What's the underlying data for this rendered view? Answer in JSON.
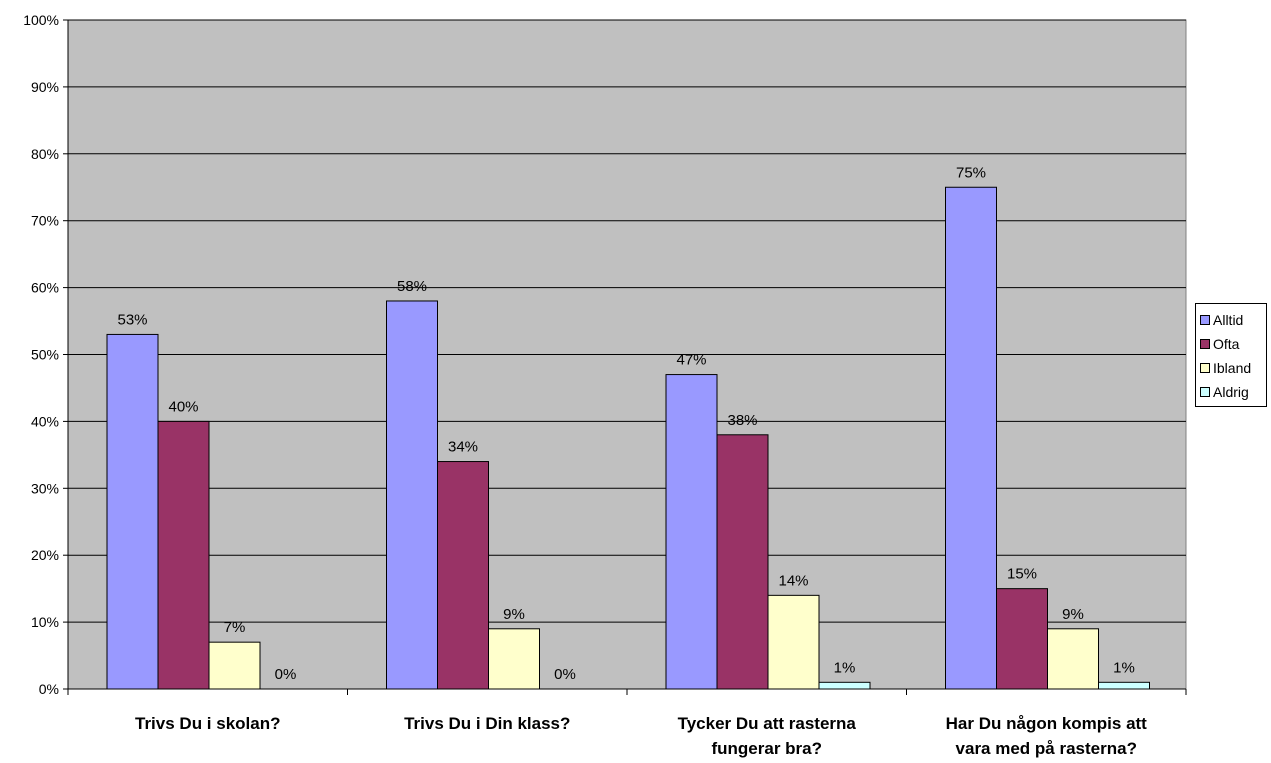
{
  "chart_data": {
    "type": "bar",
    "title": "",
    "xlabel": "",
    "ylabel": "",
    "ylim": [
      0,
      100
    ],
    "y_ticks": [
      "0%",
      "10%",
      "20%",
      "30%",
      "40%",
      "50%",
      "60%",
      "70%",
      "80%",
      "90%",
      "100%"
    ],
    "grid": true,
    "legend_position": "right",
    "categories": [
      [
        "Trivs Du i skolan?"
      ],
      [
        "Trivs Du i Din klass?"
      ],
      [
        "Tycker Du att rasterna",
        "fungerar bra?"
      ],
      [
        "Har Du någon kompis att",
        "vara med på rasterna?"
      ]
    ],
    "series": [
      {
        "name": "Alltid",
        "color": "#9999ff",
        "values": [
          53,
          58,
          47,
          75
        ],
        "labels": [
          "53%",
          "58%",
          "47%",
          "75%"
        ]
      },
      {
        "name": "Ofta",
        "color": "#993366",
        "values": [
          40,
          34,
          38,
          15
        ],
        "labels": [
          "40%",
          "34%",
          "38%",
          "15%"
        ]
      },
      {
        "name": "Ibland",
        "color": "#ffffcc",
        "values": [
          7,
          9,
          14,
          9
        ],
        "labels": [
          "7%",
          "9%",
          "14%",
          "9%"
        ]
      },
      {
        "name": "Aldrig",
        "color": "#ccffff",
        "values": [
          0,
          0,
          1,
          1
        ],
        "labels": [
          "0%",
          "0%",
          "1%",
          "1%"
        ]
      }
    ],
    "plot_background": "#c0c0c0"
  }
}
